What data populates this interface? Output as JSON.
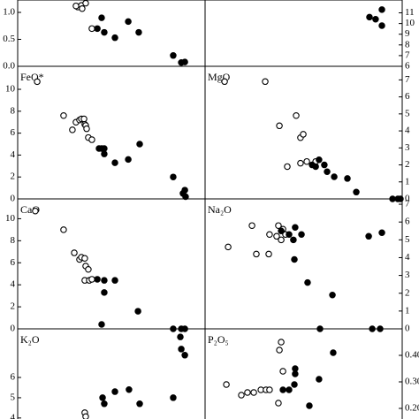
{
  "chart_data": [
    {
      "type": "scatter",
      "xlim": [
        0,
        100
      ],
      "ylim": [
        0,
        1.23
      ],
      "axis_side": "left",
      "yticks": [
        {
          "value": 0,
          "label": "0.0"
        },
        {
          "value": 0.5,
          "label": "0.5"
        },
        {
          "value": 1,
          "label": "1.0"
        }
      ],
      "series": [
        {
          "marker": "open",
          "color": "#000000",
          "x": [
            32.1,
            34.0,
            36.3,
            34.4,
            31.1,
            39.6
          ],
          "values": [
            1.1,
            1.13,
            1.17,
            1.07,
            1.12,
            0.7
          ]
        },
        {
          "marker": "filled",
          "color": "#000000",
          "x": [
            44.8,
            42.5,
            46.2,
            51.9,
            59.0,
            64.6,
            83.0,
            87.3,
            89.2
          ],
          "values": [
            0.9,
            0.7,
            0.63,
            0.53,
            0.83,
            0.63,
            0.2,
            0.07,
            0.08
          ]
        }
      ]
    },
    {
      "type": "scatter",
      "xlim": [
        0,
        100
      ],
      "ylim": [
        6,
        12.2
      ],
      "axis_side": "right",
      "yticks": [
        6,
        7,
        8,
        9,
        10,
        11
      ],
      "series": [
        {
          "marker": "filled",
          "color": "#000000",
          "x": [
            83.4,
            86.5,
            89.7,
            89.7
          ],
          "values": [
            10.6,
            10.4,
            11.3,
            9.8
          ]
        }
      ]
    },
    {
      "type": "scatter",
      "label": "FeO*",
      "xlim": [
        0,
        100
      ],
      "ylim": [
        0,
        12.1
      ],
      "axis_side": "left",
      "yticks": [
        0,
        2,
        4,
        6,
        8,
        10
      ],
      "series": [
        {
          "marker": "open",
          "color": "#000000",
          "x": [
            10.4,
            24.5,
            29.2,
            31.1,
            33.0,
            34.0,
            35.4,
            35.8,
            36.3,
            36.8,
            37.7,
            39.6
          ],
          "values": [
            10.7,
            7.6,
            6.3,
            7.0,
            7.2,
            7.3,
            7.3,
            6.8,
            6.7,
            6.4,
            5.6,
            5.4
          ]
        },
        {
          "marker": "filled",
          "color": "#000000",
          "x": [
            43.4,
            44.8,
            46.2,
            46.2,
            51.9,
            59.0,
            65.1,
            83.0,
            88.2,
            89.2,
            89.6
          ],
          "values": [
            4.6,
            4.6,
            4.6,
            4.1,
            3.3,
            3.6,
            5.0,
            2.0,
            0.5,
            0.8,
            0.2
          ]
        }
      ]
    },
    {
      "type": "scatter",
      "label": "MgO",
      "xlim": [
        0,
        100
      ],
      "ylim": [
        0,
        7.8
      ],
      "axis_side": "right",
      "yticks": [
        0,
        1,
        2,
        3,
        4,
        5,
        6,
        7
      ],
      "series": [
        {
          "marker": "open",
          "color": "#000000",
          "x": [
            9.9,
            30.5,
            37.7,
            46.2,
            48.4,
            49.8,
            41.7,
            48.4,
            51.6,
            56.1
          ],
          "values": [
            6.9,
            6.9,
            4.3,
            4.9,
            3.6,
            3.8,
            1.9,
            2.1,
            2.2,
            2.2
          ]
        },
        {
          "marker": "filled",
          "color": "#000000",
          "x": [
            54.3,
            56.1,
            57.8,
            60.5,
            61.9,
            65.5,
            72.2,
            76.7,
            95.1,
            97.8,
            99.1
          ],
          "values": [
            2.0,
            1.9,
            2.3,
            2.0,
            1.6,
            1.3,
            1.2,
            0.4,
            0,
            0,
            0
          ]
        }
      ]
    },
    {
      "type": "scatter",
      "label": "CaO",
      "xlim": [
        0,
        100
      ],
      "ylim": [
        0,
        11.8
      ],
      "axis_side": "left",
      "yticks": [
        0,
        2,
        4,
        6,
        8,
        10
      ],
      "series": [
        {
          "marker": "open",
          "color": "#000000",
          "x": [
            9.4,
            24.5,
            30.2,
            33.0,
            34.0,
            35.8,
            36.3,
            37.7,
            35.8,
            38.2,
            39.6
          ],
          "values": [
            10.7,
            9.0,
            6.9,
            6.3,
            6.5,
            6.4,
            5.7,
            5.4,
            4.4,
            4.4,
            4.5
          ]
        },
        {
          "marker": "filled",
          "color": "#000000",
          "x": [
            42.5,
            46.2,
            46.2,
            51.9,
            64.2,
            44.8,
            83.0,
            87.3,
            89.2
          ],
          "values": [
            4.5,
            4.4,
            3.3,
            4.4,
            1.6,
            0.4,
            0,
            0,
            0
          ]
        }
      ]
    },
    {
      "type": "scatter",
      "label": "Na₂O",
      "xlim": [
        0,
        100
      ],
      "ylim": [
        0,
        7.3
      ],
      "axis_side": "right",
      "yticks": [
        0,
        1,
        2,
        3,
        4,
        5,
        6,
        7
      ],
      "series": [
        {
          "marker": "open",
          "color": "#000000",
          "x": [
            11.7,
            23.8,
            32.7,
            32.3,
            36.3,
            37.2,
            38.6,
            39.5,
            40.8,
            26.0
          ],
          "values": [
            4.6,
            5.8,
            5.3,
            4.2,
            5.2,
            5.8,
            5.0,
            5.6,
            5.3,
            4.2
          ]
        },
        {
          "marker": "filled",
          "color": "#000000",
          "x": [
            38.6,
            42.6,
            45.7,
            44.8,
            48.9,
            45.3,
            52.0,
            64.6,
            58.3,
            84.8,
            88.8,
            83.0,
            89.7
          ],
          "values": [
            5.5,
            5.3,
            5.7,
            5.0,
            5.3,
            3.9,
            2.6,
            1.9,
            0,
            0,
            0,
            5.2,
            5.4
          ]
        }
      ]
    },
    {
      "type": "scatter",
      "label": "K₂O",
      "xlim": [
        0,
        100
      ],
      "ylim": [
        3.95,
        8.4
      ],
      "axis_side": "left",
      "yticks": [
        4,
        5,
        6
      ],
      "series": [
        {
          "marker": "open",
          "color": "#000000",
          "x": [
            35.8,
            36.3
          ],
          "values": [
            4.26,
            4.07
          ]
        },
        {
          "marker": "filled",
          "color": "#000000",
          "x": [
            45.3,
            46.2,
            51.9,
            59.4,
            65.1,
            83.0,
            86.8,
            87.3,
            89.2
          ],
          "values": [
            5.0,
            4.7,
            5.3,
            5.4,
            4.7,
            5.0,
            8.0,
            7.4,
            7.1
          ]
        }
      ]
    },
    {
      "type": "scatter",
      "label": "P₂O₅",
      "xlim": [
        0,
        100
      ],
      "ylim": [
        0.16,
        0.5
      ],
      "axis_side": "right",
      "yticks": [
        {
          "value": 0.2,
          "label": "0.20"
        },
        {
          "value": 0.3,
          "label": "0.30"
        },
        {
          "value": 0.4,
          "label": "0.40"
        }
      ],
      "series": [
        {
          "marker": "open",
          "color": "#000000",
          "x": [
            10.8,
            18.4,
            21.5,
            24.7,
            28.3,
            30.9,
            32.7,
            37.2,
            39.5,
            38.6,
            37.7
          ],
          "values": [
            0.29,
            0.25,
            0.26,
            0.26,
            0.27,
            0.27,
            0.27,
            0.22,
            0.34,
            0.45,
            0.42
          ]
        },
        {
          "marker": "filled",
          "color": "#000000",
          "x": [
            39.5,
            42.6,
            45.3,
            45.7,
            45.7,
            52.9,
            57.8,
            65.0
          ],
          "values": [
            0.27,
            0.27,
            0.29,
            0.35,
            0.33,
            0.21,
            0.31,
            0.41
          ]
        }
      ]
    }
  ]
}
